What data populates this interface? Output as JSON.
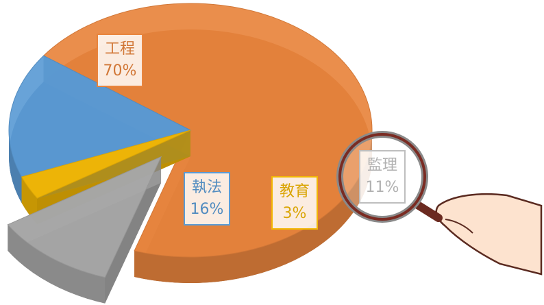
{
  "chart_data": {
    "type": "pie",
    "categories": [
      "工程",
      "執法",
      "教育",
      "監理"
    ],
    "values": [
      70,
      16,
      3,
      11
    ],
    "value_labels": [
      "70%",
      "16%",
      "3%",
      "11%"
    ],
    "colors": [
      "#e8843d",
      "#5b9bd5",
      "#f2b705",
      "#a8a8a8"
    ],
    "explode": [
      false,
      false,
      false,
      true
    ]
  }
}
